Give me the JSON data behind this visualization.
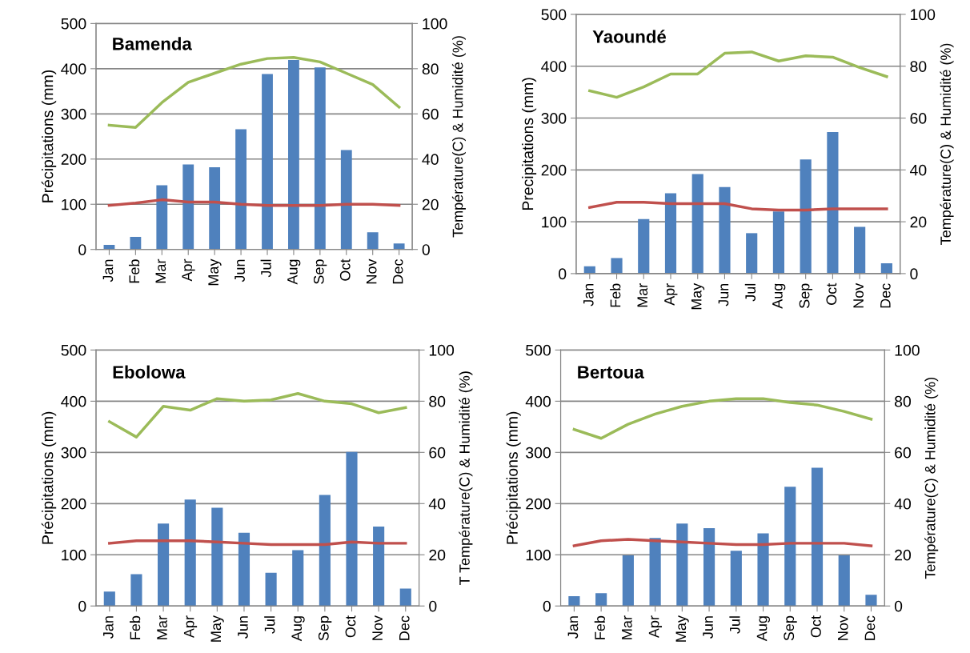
{
  "chart_data": [
    {
      "type": "bar",
      "title": "Bamenda",
      "ylabel": "Précipitations (mm)",
      "y2label": "Température(C) & Humidité (%)",
      "categories": [
        "Jan",
        "Feb",
        "Mar",
        "Apr",
        "May",
        "Jun",
        "Jul",
        "Aug",
        "Sep",
        "Oct",
        "Nov",
        "Dec"
      ],
      "ylim": [
        0,
        500
      ],
      "yticks": [
        0,
        100,
        200,
        300,
        400,
        500
      ],
      "y2lim": [
        0,
        100
      ],
      "y2ticks": [
        0,
        20,
        40,
        60,
        80,
        100
      ],
      "grid": "y",
      "series": [
        {
          "color": "#4f81bd",
          "values": [
            10,
            28,
            142,
            188,
            182,
            266,
            388,
            419,
            403,
            220,
            38,
            13
          ]
        },
        {
          "type": "line",
          "axis": "y2",
          "color": "#9bbb59",
          "values": [
            55,
            54,
            65,
            74,
            78,
            82,
            84.5,
            85,
            83,
            78,
            73,
            63
          ]
        },
        {
          "type": "line",
          "axis": "y2",
          "color": "#c0504d",
          "values": [
            19.5,
            20.5,
            22,
            21,
            21,
            20,
            19.5,
            19.5,
            19.5,
            20,
            20,
            19.5
          ]
        }
      ]
    },
    {
      "type": "bar",
      "title": "Yaoundé",
      "ylabel": "Precipitations (mm)",
      "y2label": "Température(C) & Humidité (%)",
      "categories": [
        "Jan",
        "Feb",
        "Mar",
        "Apr",
        "May",
        "Jun",
        "Jul",
        "Aug",
        "Sep",
        "Oct",
        "Nov",
        "Dec"
      ],
      "ylim": [
        0,
        500
      ],
      "yticks": [
        0,
        100,
        200,
        300,
        400,
        500
      ],
      "y2lim": [
        0,
        100
      ],
      "y2ticks": [
        0,
        20,
        40,
        60,
        80,
        100
      ],
      "grid": "y",
      "series": [
        {
          "color": "#4f81bd",
          "values": [
            14,
            30,
            105,
            155,
            192,
            167,
            78,
            120,
            220,
            273,
            90,
            20
          ]
        },
        {
          "type": "line",
          "axis": "y2",
          "color": "#9bbb59",
          "values": [
            70.5,
            68,
            72,
            77,
            77,
            85,
            85.5,
            82,
            84,
            83.5,
            79.5,
            76
          ]
        },
        {
          "type": "line",
          "axis": "y2",
          "color": "#c0504d",
          "values": [
            25.5,
            27.5,
            27.5,
            27,
            27,
            27,
            25,
            24.5,
            24.5,
            25,
            25,
            25
          ]
        }
      ]
    },
    {
      "type": "bar",
      "title": "Ebolowa",
      "ylabel": "Précipitations (mm)",
      "y2label": "T Température(C) & Humidité (%)",
      "categories": [
        "Jan",
        "Feb",
        "Mar",
        "Apr",
        "May",
        "Jun",
        "Jul",
        "Aug",
        "Sep",
        "Oct",
        "Nov",
        "Dec"
      ],
      "ylim": [
        0,
        500
      ],
      "yticks": [
        0,
        100,
        200,
        300,
        400,
        500
      ],
      "y2lim": [
        0,
        100
      ],
      "y2ticks": [
        0,
        20,
        40,
        60,
        80,
        100
      ],
      "grid": "y",
      "series": [
        {
          "color": "#4f81bd",
          "values": [
            28,
            62,
            161,
            208,
            192,
            143,
            65,
            109,
            217,
            301,
            155,
            34
          ]
        },
        {
          "type": "line",
          "axis": "y2",
          "color": "#9bbb59",
          "values": [
            72,
            66,
            78,
            76.5,
            81,
            80,
            80.5,
            83,
            80,
            79,
            75.5,
            77.5
          ]
        },
        {
          "type": "line",
          "axis": "y2",
          "color": "#c0504d",
          "values": [
            24.5,
            25.5,
            25.5,
            25.5,
            25,
            24.5,
            24,
            24,
            24,
            25,
            24.5,
            24.5
          ]
        }
      ]
    },
    {
      "type": "bar",
      "title": "Bertoua",
      "ylabel": "Précipitations (mm)",
      "y2label": "Température(C) & Humidité (%)",
      "categories": [
        "Jan",
        "Feb",
        "Mar",
        "Apr",
        "May",
        "Jun",
        "Jul",
        "Aug",
        "Sep",
        "Oct",
        "Nov",
        "Dec"
      ],
      "ylim": [
        0,
        500
      ],
      "yticks": [
        0,
        100,
        200,
        300,
        400,
        500
      ],
      "y2lim": [
        0,
        100
      ],
      "y2ticks": [
        0,
        20,
        40,
        60,
        80,
        100
      ],
      "grid": "y",
      "series": [
        {
          "color": "#4f81bd",
          "values": [
            19,
            25,
            99,
            133,
            161,
            152,
            108,
            142,
            233,
            270,
            99,
            22
          ]
        },
        {
          "type": "line",
          "axis": "y2",
          "color": "#9bbb59",
          "values": [
            69,
            65.5,
            71,
            75,
            78,
            80,
            81,
            81,
            79.5,
            78.5,
            76,
            73
          ]
        },
        {
          "type": "line",
          "axis": "y2",
          "color": "#c0504d",
          "values": [
            23.5,
            25.5,
            26,
            25.5,
            25,
            24.5,
            24,
            24,
            24.5,
            24.5,
            24.5,
            23.5
          ]
        }
      ]
    }
  ]
}
